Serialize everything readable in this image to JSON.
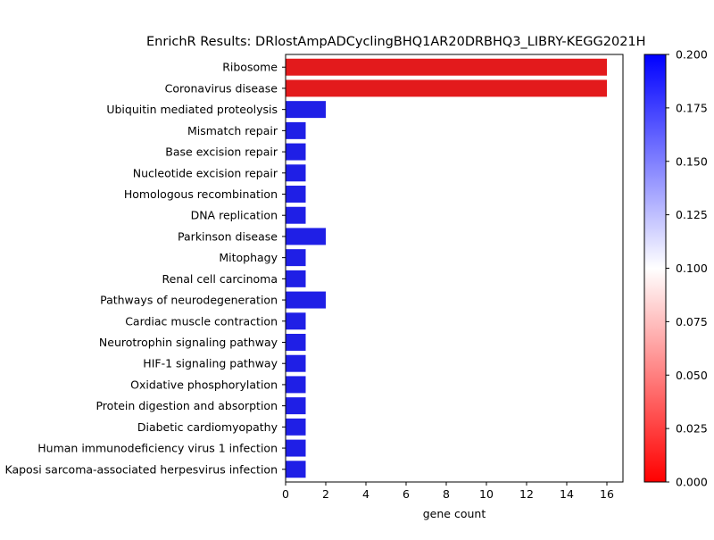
{
  "chart_data": {
    "type": "bar",
    "orientation": "horizontal",
    "title": "EnrichR Results: DRlostAmpADCyclingBHQ1AR20DRBHQ3_LIBRY-KEGG2021H",
    "xlabel": "gene count",
    "ylabel": "",
    "xlim": [
      0,
      16.8
    ],
    "xticks": [
      0,
      2,
      4,
      6,
      8,
      10,
      12,
      14,
      16
    ],
    "grid": false,
    "categories": [
      "Ribosome",
      "Coronavirus disease",
      "Ubiquitin mediated proteolysis",
      "Mismatch repair",
      "Base excision repair",
      "Nucleotide excision repair",
      "Homologous recombination",
      "DNA replication",
      "Parkinson disease",
      "Mitophagy",
      "Renal cell carcinoma",
      "Pathways of neurodegeneration",
      "Cardiac muscle contraction",
      "Neurotrophin signaling pathway",
      "HIF-1 signaling pathway",
      "Oxidative phosphorylation",
      "Protein digestion and absorption",
      "Diabetic cardiomyopathy",
      "Human immunodeficiency virus 1 infection",
      "Kaposi sarcoma-associated herpesvirus infection"
    ],
    "values": [
      16,
      16,
      2,
      1,
      1,
      1,
      1,
      1,
      2,
      1,
      1,
      2,
      1,
      1,
      1,
      1,
      1,
      1,
      1,
      1
    ],
    "bar_colors": [
      "#e31a1c",
      "#e31a1c",
      "#1f1fe6",
      "#1f1fe6",
      "#1f1fe6",
      "#1f1fe6",
      "#1f1fe6",
      "#1f1fe6",
      "#1f1fe6",
      "#1f1fe6",
      "#1f1fe6",
      "#1f1fe6",
      "#1f1fe6",
      "#1f1fe6",
      "#1f1fe6",
      "#1f1fe6",
      "#1f1fe6",
      "#1f1fe6",
      "#1f1fe6",
      "#1f1fe6"
    ],
    "colorbar": {
      "cmap": "bwr_r",
      "range": [
        0.0,
        0.2
      ],
      "ticks": [
        0.0,
        0.025,
        0.05,
        0.075,
        0.1,
        0.125,
        0.15,
        0.175,
        0.2
      ],
      "tick_labels": [
        "0.000",
        "0.025",
        "0.050",
        "0.075",
        "0.100",
        "0.125",
        "0.150",
        "0.175",
        "0.200"
      ],
      "low_color": "#ff0000",
      "mid_color": "#ffffff",
      "high_color": "#0000ff"
    }
  }
}
